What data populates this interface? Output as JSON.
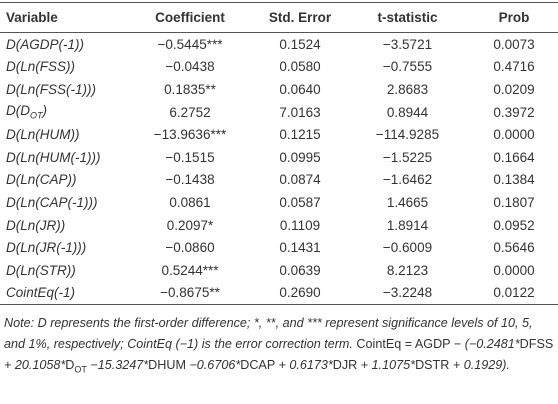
{
  "table": {
    "header": [
      "Variable",
      "Coefficient",
      "Std. Error",
      "t-statistic",
      "Prob"
    ],
    "rows": [
      [
        "D(AGDP(-1))",
        "−0.5445***",
        "0.1524",
        "−3.5721",
        "0.0073"
      ],
      [
        "D(Ln(FSS))",
        "−0.0438",
        "0.0580",
        "−0.7555",
        "0.4716"
      ],
      [
        "D(Ln(FSS(-1)))",
        "0.1835**",
        "0.0640",
        "2.8683",
        "0.0209"
      ],
      [
        [
          "D(D",
          "OT",
          ")"
        ],
        "6.2752",
        "7.0163",
        "0.8944",
        "0.3972"
      ],
      [
        "D(Ln(HUM))",
        "−13.9636***",
        "0.1215",
        "−114.9285",
        "0.0000"
      ],
      [
        "D(Ln(HUM(-1)))",
        "−0.1515",
        "0.0995",
        "−1.5225",
        "0.1664"
      ],
      [
        "D(Ln(CAP))",
        "−0.1438",
        "0.0874",
        "−1.6462",
        "0.1384"
      ],
      [
        "D(Ln(CAP(-1)))",
        "0.0861",
        "0.0587",
        "1.4665",
        "0.1807"
      ],
      [
        "D(Ln(JR))",
        "0.2097*",
        "0.1109",
        "1.8914",
        "0.0952"
      ],
      [
        "D(Ln(JR(-1)))",
        "−0.0860",
        "0.1431",
        "−0.6009",
        "0.5646"
      ],
      [
        "D(Ln(STR))",
        "0.5244***",
        "0.0639",
        "8.2123",
        "0.0000"
      ],
      [
        "CointEq(-1)",
        "−0.8675**",
        "0.2690",
        "−3.2248",
        "0.0122"
      ]
    ]
  },
  "note": [
    "Note: D represents the first-order difference; *, **, and *** represent significance levels of 10, 5, and 1%, respectively; CointEq (−1) is the error correction term.",
    "CointEq = AGDP −",
    "(−0.2481*",
    "DFSS",
    "+ 20.1058*",
    "D",
    "OT",
    "−15.3247*",
    "DHUM",
    "−0.6706*",
    "DCAP",
    "+ 0.6173*",
    "DJR",
    "+ 1.1075*",
    "DSTR",
    "+ 0.1929)."
  ]
}
